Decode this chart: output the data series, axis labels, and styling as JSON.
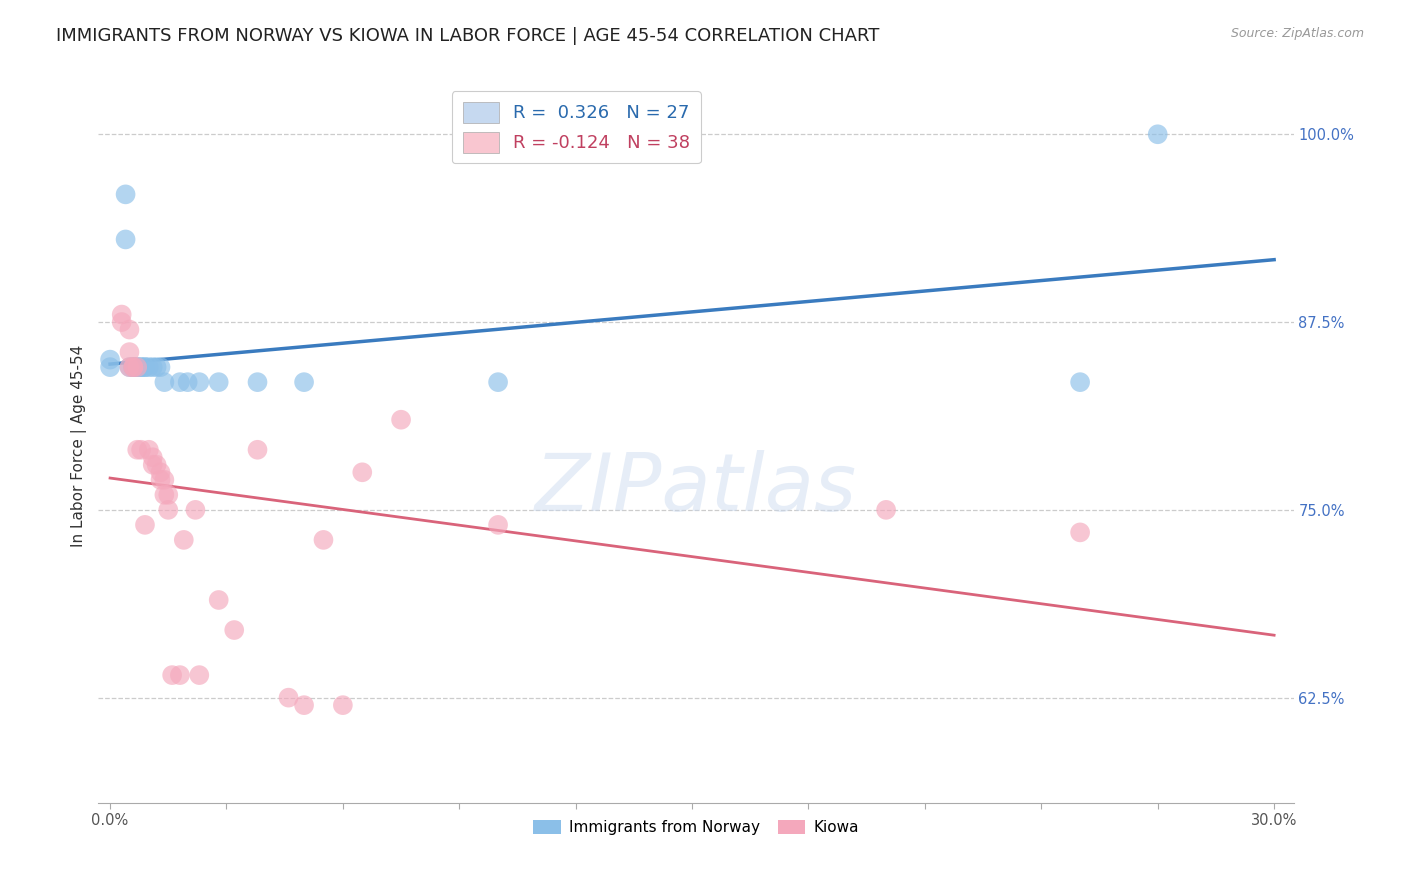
{
  "title": "IMMIGRANTS FROM NORWAY VS KIOWA IN LABOR FORCE | AGE 45-54 CORRELATION CHART",
  "source": "Source: ZipAtlas.com",
  "ylabel": "In Labor Force | Age 45-54",
  "ylim": [
    0.555,
    1.03
  ],
  "xlim": [
    -0.003,
    0.305
  ],
  "norway_R": 0.326,
  "norway_N": 27,
  "kiowa_R": -0.124,
  "kiowa_N": 38,
  "norway_color": "#8bbfe8",
  "kiowa_color": "#f4a8bc",
  "norway_line_color": "#3a7bbf",
  "kiowa_line_color": "#d9637a",
  "norway_x": [
    0.0,
    0.0,
    0.004,
    0.004,
    0.005,
    0.006,
    0.006,
    0.007,
    0.007,
    0.008,
    0.008,
    0.009,
    0.009,
    0.01,
    0.011,
    0.012,
    0.013,
    0.014,
    0.018,
    0.02,
    0.023,
    0.028,
    0.038,
    0.05,
    0.1,
    0.25,
    0.27
  ],
  "norway_y": [
    0.845,
    0.85,
    0.96,
    0.93,
    0.845,
    0.845,
    0.845,
    0.845,
    0.845,
    0.845,
    0.845,
    0.845,
    0.845,
    0.845,
    0.845,
    0.845,
    0.845,
    0.835,
    0.835,
    0.835,
    0.835,
    0.835,
    0.835,
    0.835,
    0.835,
    0.835,
    1.0
  ],
  "kiowa_x": [
    0.003,
    0.003,
    0.005,
    0.005,
    0.005,
    0.006,
    0.006,
    0.007,
    0.007,
    0.008,
    0.009,
    0.01,
    0.011,
    0.011,
    0.012,
    0.013,
    0.013,
    0.014,
    0.014,
    0.015,
    0.015,
    0.016,
    0.018,
    0.019,
    0.022,
    0.023,
    0.028,
    0.032,
    0.038,
    0.046,
    0.05,
    0.055,
    0.06,
    0.065,
    0.075,
    0.1,
    0.2,
    0.25
  ],
  "kiowa_y": [
    0.88,
    0.875,
    0.87,
    0.855,
    0.845,
    0.845,
    0.845,
    0.845,
    0.79,
    0.79,
    0.74,
    0.79,
    0.785,
    0.78,
    0.78,
    0.775,
    0.77,
    0.77,
    0.76,
    0.76,
    0.75,
    0.64,
    0.64,
    0.73,
    0.75,
    0.64,
    0.69,
    0.67,
    0.79,
    0.625,
    0.62,
    0.73,
    0.62,
    0.775,
    0.81,
    0.74,
    0.75,
    0.735
  ],
  "watermark_text": "ZIPatlas",
  "background_color": "#ffffff",
  "grid_color": "#cccccc",
  "ytick_color": "#4472c4",
  "xtick_color": "#555555",
  "title_fontsize": 13,
  "axis_label_fontsize": 11,
  "tick_label_fontsize": 10.5,
  "legend_box_color_norway": "#c6d9f0",
  "legend_box_color_kiowa": "#f9c6d0",
  "legend_text_color_norway": "#2a6aad",
  "legend_text_color_kiowa": "#c04060",
  "ytick_vals": [
    0.625,
    0.75,
    0.875,
    1.0
  ],
  "ytick_labels": [
    "62.5%",
    "75.0%",
    "87.5%",
    "100.0%"
  ]
}
